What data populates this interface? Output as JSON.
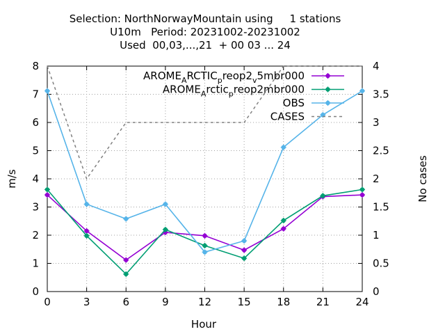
{
  "title_lines": [
    "Selection: NorthNorwayMountain using     1 stations",
    "U10m   Period: 20231002-20231002",
    "Used  00,03,...,21  + 00 03 ... 24"
  ],
  "chart_data": {
    "type": "line",
    "xlabel": "Hour",
    "ylabel": "m/s",
    "y2label": "No cases",
    "x": [
      0,
      3,
      6,
      9,
      12,
      15,
      18,
      21,
      24
    ],
    "xticks": [
      0,
      3,
      6,
      9,
      12,
      15,
      18,
      21,
      24
    ],
    "xlim": [
      0,
      24
    ],
    "ylim": [
      0,
      8
    ],
    "yticks": [
      0,
      1,
      2,
      3,
      4,
      5,
      6,
      7,
      8
    ],
    "y2lim": [
      0,
      4
    ],
    "y2ticks": [
      "0",
      "0.5",
      "1",
      "1.5",
      "2",
      "2.5",
      "3",
      "3.5",
      "4"
    ],
    "legend_position": "top-right",
    "series": [
      {
        "name_parts": [
          [
            "AROME",
            ""
          ],
          [
            "A",
            "sub"
          ],
          [
            "RCTIC",
            ""
          ],
          [
            "p",
            "sub"
          ],
          [
            "reop2",
            ""
          ],
          [
            "v",
            "sub"
          ],
          [
            "5mbr000",
            ""
          ]
        ],
        "color": "#9400d3",
        "axis": "y",
        "dashed": false,
        "marker": true,
        "values": [
          3.43,
          2.15,
          1.12,
          2.1,
          1.98,
          1.47,
          2.23,
          3.37,
          3.43
        ]
      },
      {
        "name_parts": [
          [
            "AROME",
            ""
          ],
          [
            "A",
            "sub"
          ],
          [
            "rctic",
            ""
          ],
          [
            "p",
            "sub"
          ],
          [
            "reop2mbr000",
            ""
          ]
        ],
        "color": "#009e73",
        "axis": "y",
        "dashed": false,
        "marker": true,
        "values": [
          3.62,
          1.98,
          0.62,
          2.2,
          1.63,
          1.18,
          2.52,
          3.4,
          3.62
        ]
      },
      {
        "name_parts": [
          [
            "OBS",
            ""
          ]
        ],
        "color": "#56b4e9",
        "axis": "y",
        "dashed": false,
        "marker": true,
        "values": [
          7.12,
          3.1,
          2.58,
          3.1,
          1.4,
          1.8,
          5.12,
          6.27,
          7.12
        ]
      },
      {
        "name_parts": [
          [
            "CASES",
            ""
          ]
        ],
        "color": "#808080",
        "axis": "y2",
        "dashed": true,
        "marker": false,
        "values": [
          4,
          2,
          3,
          3,
          3,
          3,
          4,
          4,
          4
        ]
      }
    ]
  }
}
